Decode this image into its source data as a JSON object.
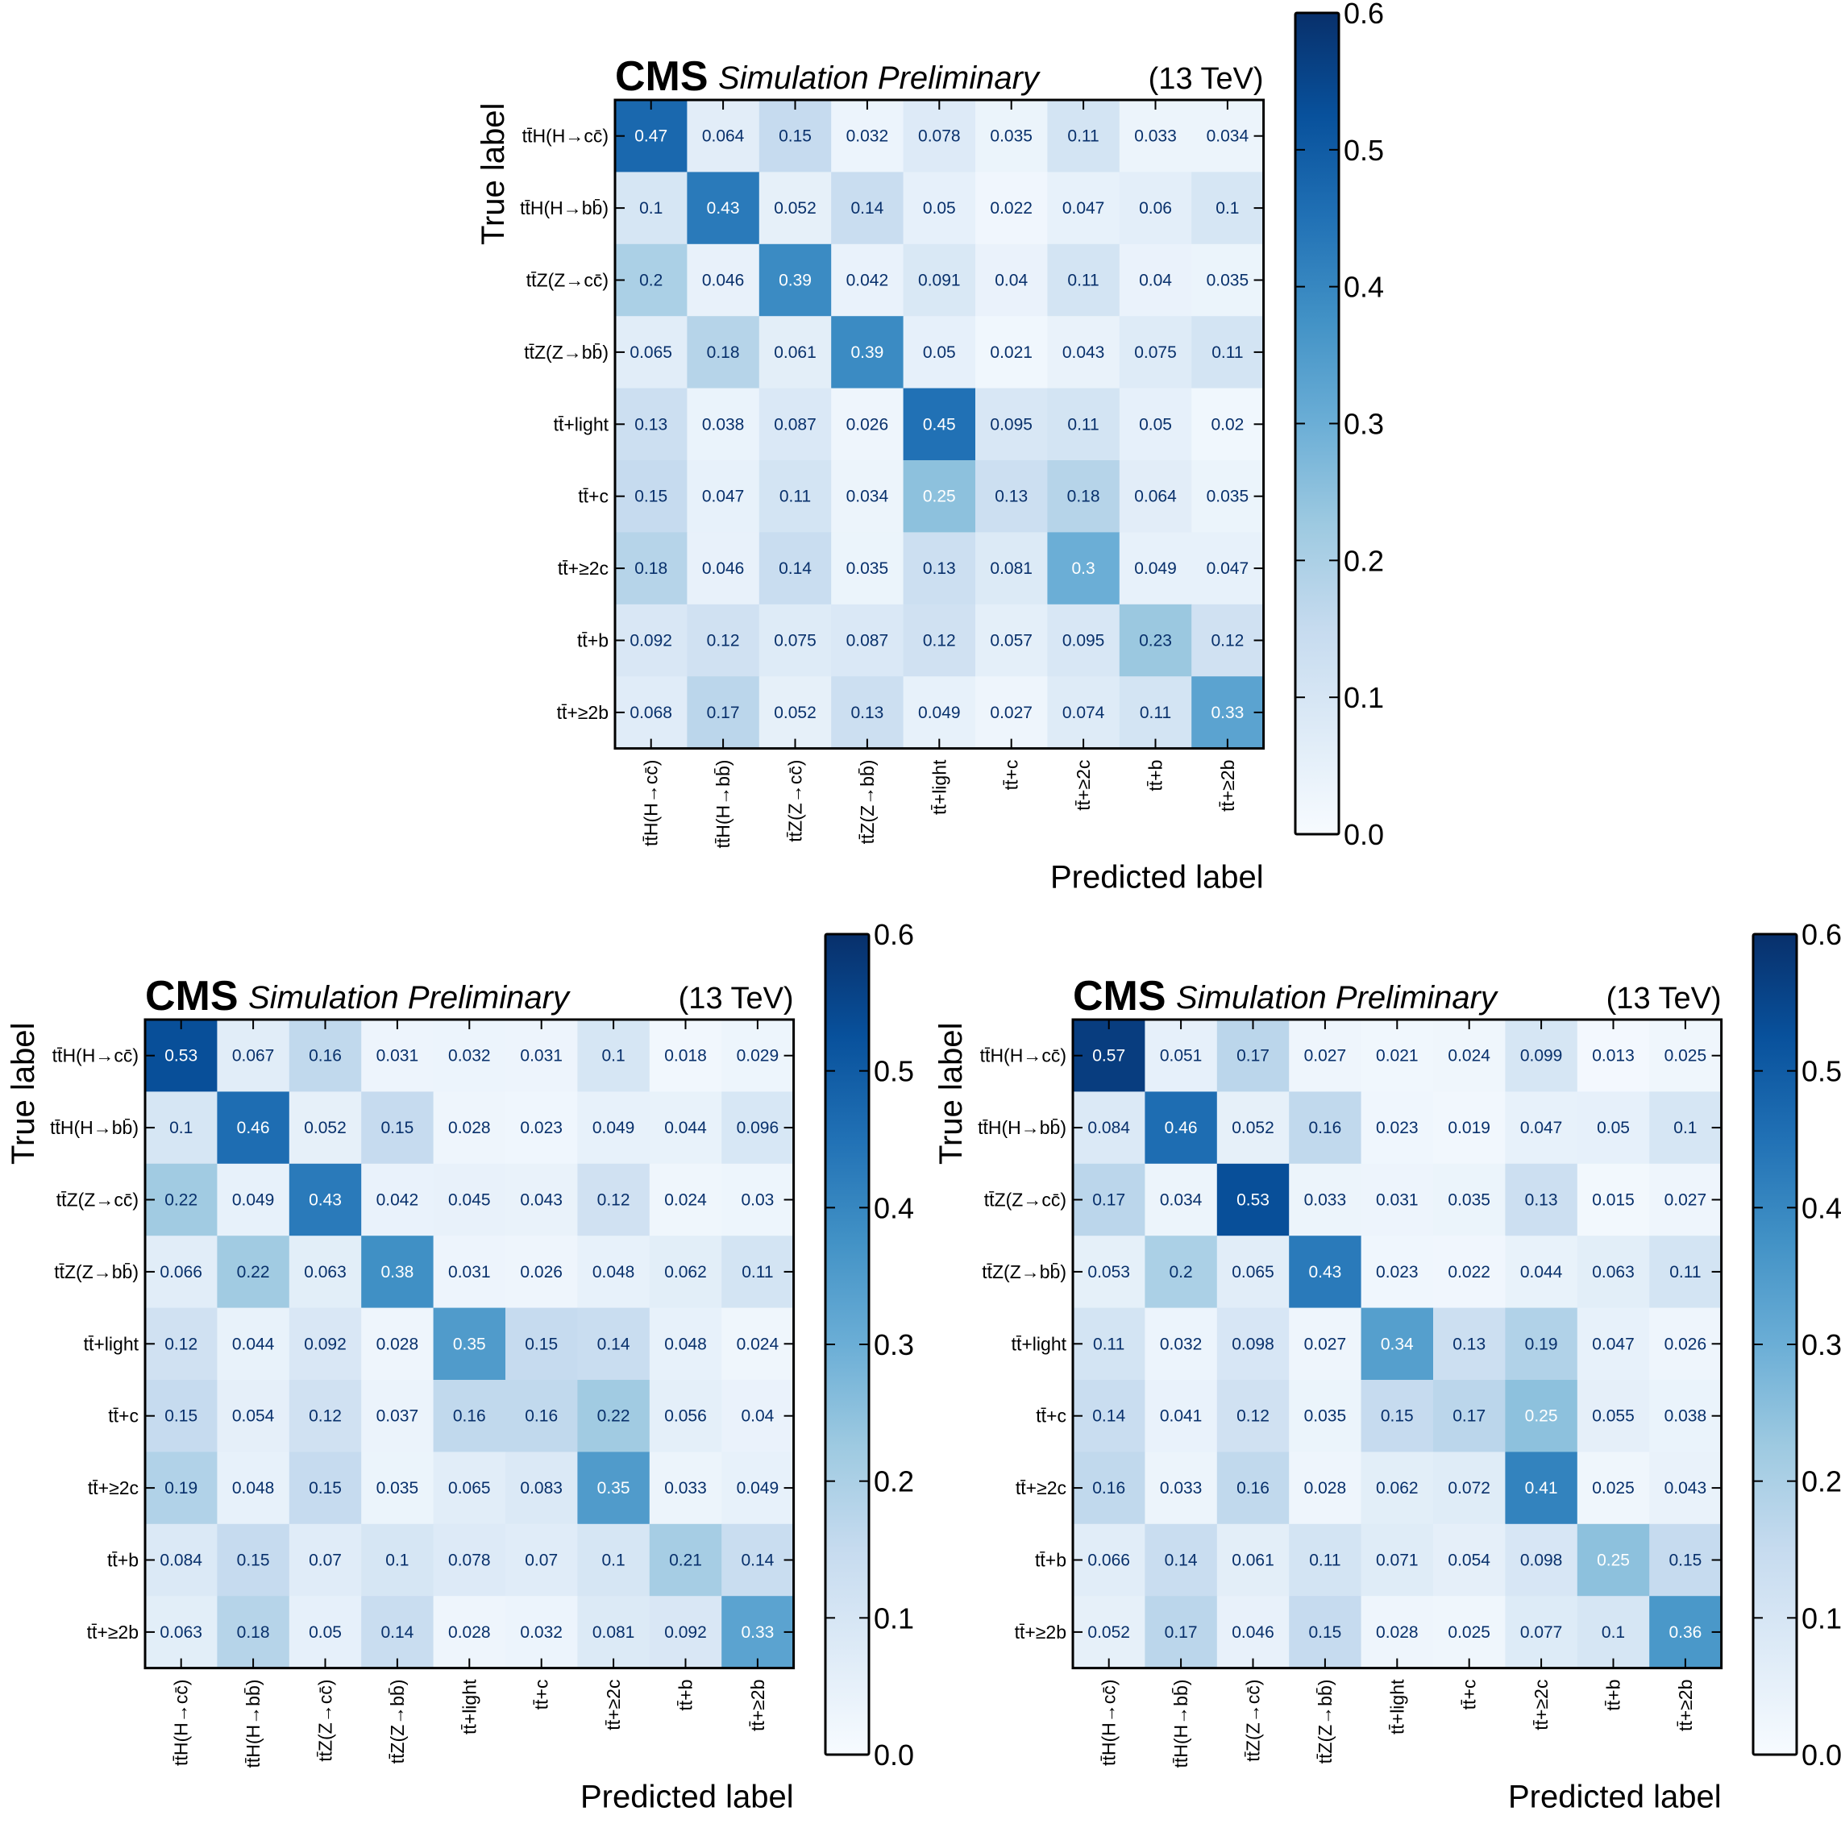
{
  "figure": {
    "class_labels": [
      "tt̄H(H→cc̄)",
      "tt̄H(H→bb̄)",
      "tt̄Z(Z→cc̄)",
      "tt̄Z(Z→bb̄)",
      "tt̄+light",
      "tt̄+c",
      "tt̄+≥2c",
      "tt̄+b",
      "tt̄+≥2b"
    ],
    "colormap": {
      "low": "#f7fbff",
      "high": "#08306b"
    }
  },
  "chart_data": [
    {
      "type": "heatmap",
      "position": "top",
      "cms_label": "CMS",
      "subtitle": "Simulation Preliminary",
      "energy": "(13 TeV)",
      "xlabel": "Predicted label",
      "ylabel": "True label",
      "colorbar": {
        "range": [
          0,
          0.6
        ],
        "ticks": [
          "0.0",
          "0.1",
          "0.2",
          "0.3",
          "0.4",
          "0.5",
          "0.6"
        ]
      },
      "matrix": [
        [
          "0.47",
          "0.064",
          "0.15",
          "0.032",
          "0.078",
          "0.035",
          "0.11",
          "0.033",
          "0.034"
        ],
        [
          "0.1",
          "0.43",
          "0.052",
          "0.14",
          "0.05",
          "0.022",
          "0.047",
          "0.06",
          "0.1"
        ],
        [
          "0.2",
          "0.046",
          "0.39",
          "0.042",
          "0.091",
          "0.04",
          "0.11",
          "0.04",
          "0.035"
        ],
        [
          "0.065",
          "0.18",
          "0.061",
          "0.39",
          "0.05",
          "0.021",
          "0.043",
          "0.075",
          "0.11"
        ],
        [
          "0.13",
          "0.038",
          "0.087",
          "0.026",
          "0.45",
          "0.095",
          "0.11",
          "0.05",
          "0.02"
        ],
        [
          "0.15",
          "0.047",
          "0.11",
          "0.034",
          "0.25",
          "0.13",
          "0.18",
          "0.064",
          "0.035"
        ],
        [
          "0.18",
          "0.046",
          "0.14",
          "0.035",
          "0.13",
          "0.081",
          "0.3",
          "0.049",
          "0.047"
        ],
        [
          "0.092",
          "0.12",
          "0.075",
          "0.087",
          "0.12",
          "0.057",
          "0.095",
          "0.23",
          "0.12"
        ],
        [
          "0.068",
          "0.17",
          "0.052",
          "0.13",
          "0.049",
          "0.027",
          "0.074",
          "0.11",
          "0.33"
        ]
      ]
    },
    {
      "type": "heatmap",
      "position": "bottom-left",
      "cms_label": "CMS",
      "subtitle": "Simulation Preliminary",
      "energy": "(13 TeV)",
      "xlabel": "Predicted label",
      "ylabel": "True label",
      "colorbar": {
        "range": [
          0,
          0.6
        ],
        "ticks": [
          "0.0",
          "0.1",
          "0.2",
          "0.3",
          "0.4",
          "0.5",
          "0.6"
        ]
      },
      "matrix": [
        [
          "0.53",
          "0.067",
          "0.16",
          "0.031",
          "0.032",
          "0.031",
          "0.1",
          "0.018",
          "0.029"
        ],
        [
          "0.1",
          "0.46",
          "0.052",
          "0.15",
          "0.028",
          "0.023",
          "0.049",
          "0.044",
          "0.096"
        ],
        [
          "0.22",
          "0.049",
          "0.43",
          "0.042",
          "0.045",
          "0.043",
          "0.12",
          "0.024",
          "0.03"
        ],
        [
          "0.066",
          "0.22",
          "0.063",
          "0.38",
          "0.031",
          "0.026",
          "0.048",
          "0.062",
          "0.11"
        ],
        [
          "0.12",
          "0.044",
          "0.092",
          "0.028",
          "0.35",
          "0.15",
          "0.14",
          "0.048",
          "0.024"
        ],
        [
          "0.15",
          "0.054",
          "0.12",
          "0.037",
          "0.16",
          "0.16",
          "0.22",
          "0.056",
          "0.04"
        ],
        [
          "0.19",
          "0.048",
          "0.15",
          "0.035",
          "0.065",
          "0.083",
          "0.35",
          "0.033",
          "0.049"
        ],
        [
          "0.084",
          "0.15",
          "0.07",
          "0.1",
          "0.078",
          "0.07",
          "0.1",
          "0.21",
          "0.14"
        ],
        [
          "0.063",
          "0.18",
          "0.05",
          "0.14",
          "0.028",
          "0.032",
          "0.081",
          "0.092",
          "0.33"
        ]
      ]
    },
    {
      "type": "heatmap",
      "position": "bottom-right",
      "cms_label": "CMS",
      "subtitle": "Simulation Preliminary",
      "energy": "(13 TeV)",
      "xlabel": "Predicted label",
      "ylabel": "True label",
      "colorbar": {
        "range": [
          0,
          0.6
        ],
        "ticks": [
          "0.0",
          "0.1",
          "0.2",
          "0.3",
          "0.4",
          "0.5",
          "0.6"
        ]
      },
      "matrix": [
        [
          "0.57",
          "0.051",
          "0.17",
          "0.027",
          "0.021",
          "0.024",
          "0.099",
          "0.013",
          "0.025"
        ],
        [
          "0.084",
          "0.46",
          "0.052",
          "0.16",
          "0.023",
          "0.019",
          "0.047",
          "0.05",
          "0.1"
        ],
        [
          "0.17",
          "0.034",
          "0.53",
          "0.033",
          "0.031",
          "0.035",
          "0.13",
          "0.015",
          "0.027"
        ],
        [
          "0.053",
          "0.2",
          "0.065",
          "0.43",
          "0.023",
          "0.022",
          "0.044",
          "0.063",
          "0.11"
        ],
        [
          "0.11",
          "0.032",
          "0.098",
          "0.027",
          "0.34",
          "0.13",
          "0.19",
          "0.047",
          "0.026"
        ],
        [
          "0.14",
          "0.041",
          "0.12",
          "0.035",
          "0.15",
          "0.17",
          "0.25",
          "0.055",
          "0.038"
        ],
        [
          "0.16",
          "0.033",
          "0.16",
          "0.028",
          "0.062",
          "0.072",
          "0.41",
          "0.025",
          "0.043"
        ],
        [
          "0.066",
          "0.14",
          "0.061",
          "0.11",
          "0.071",
          "0.054",
          "0.098",
          "0.25",
          "0.15"
        ],
        [
          "0.052",
          "0.17",
          "0.046",
          "0.15",
          "0.028",
          "0.025",
          "0.077",
          "0.1",
          "0.36"
        ]
      ]
    }
  ]
}
